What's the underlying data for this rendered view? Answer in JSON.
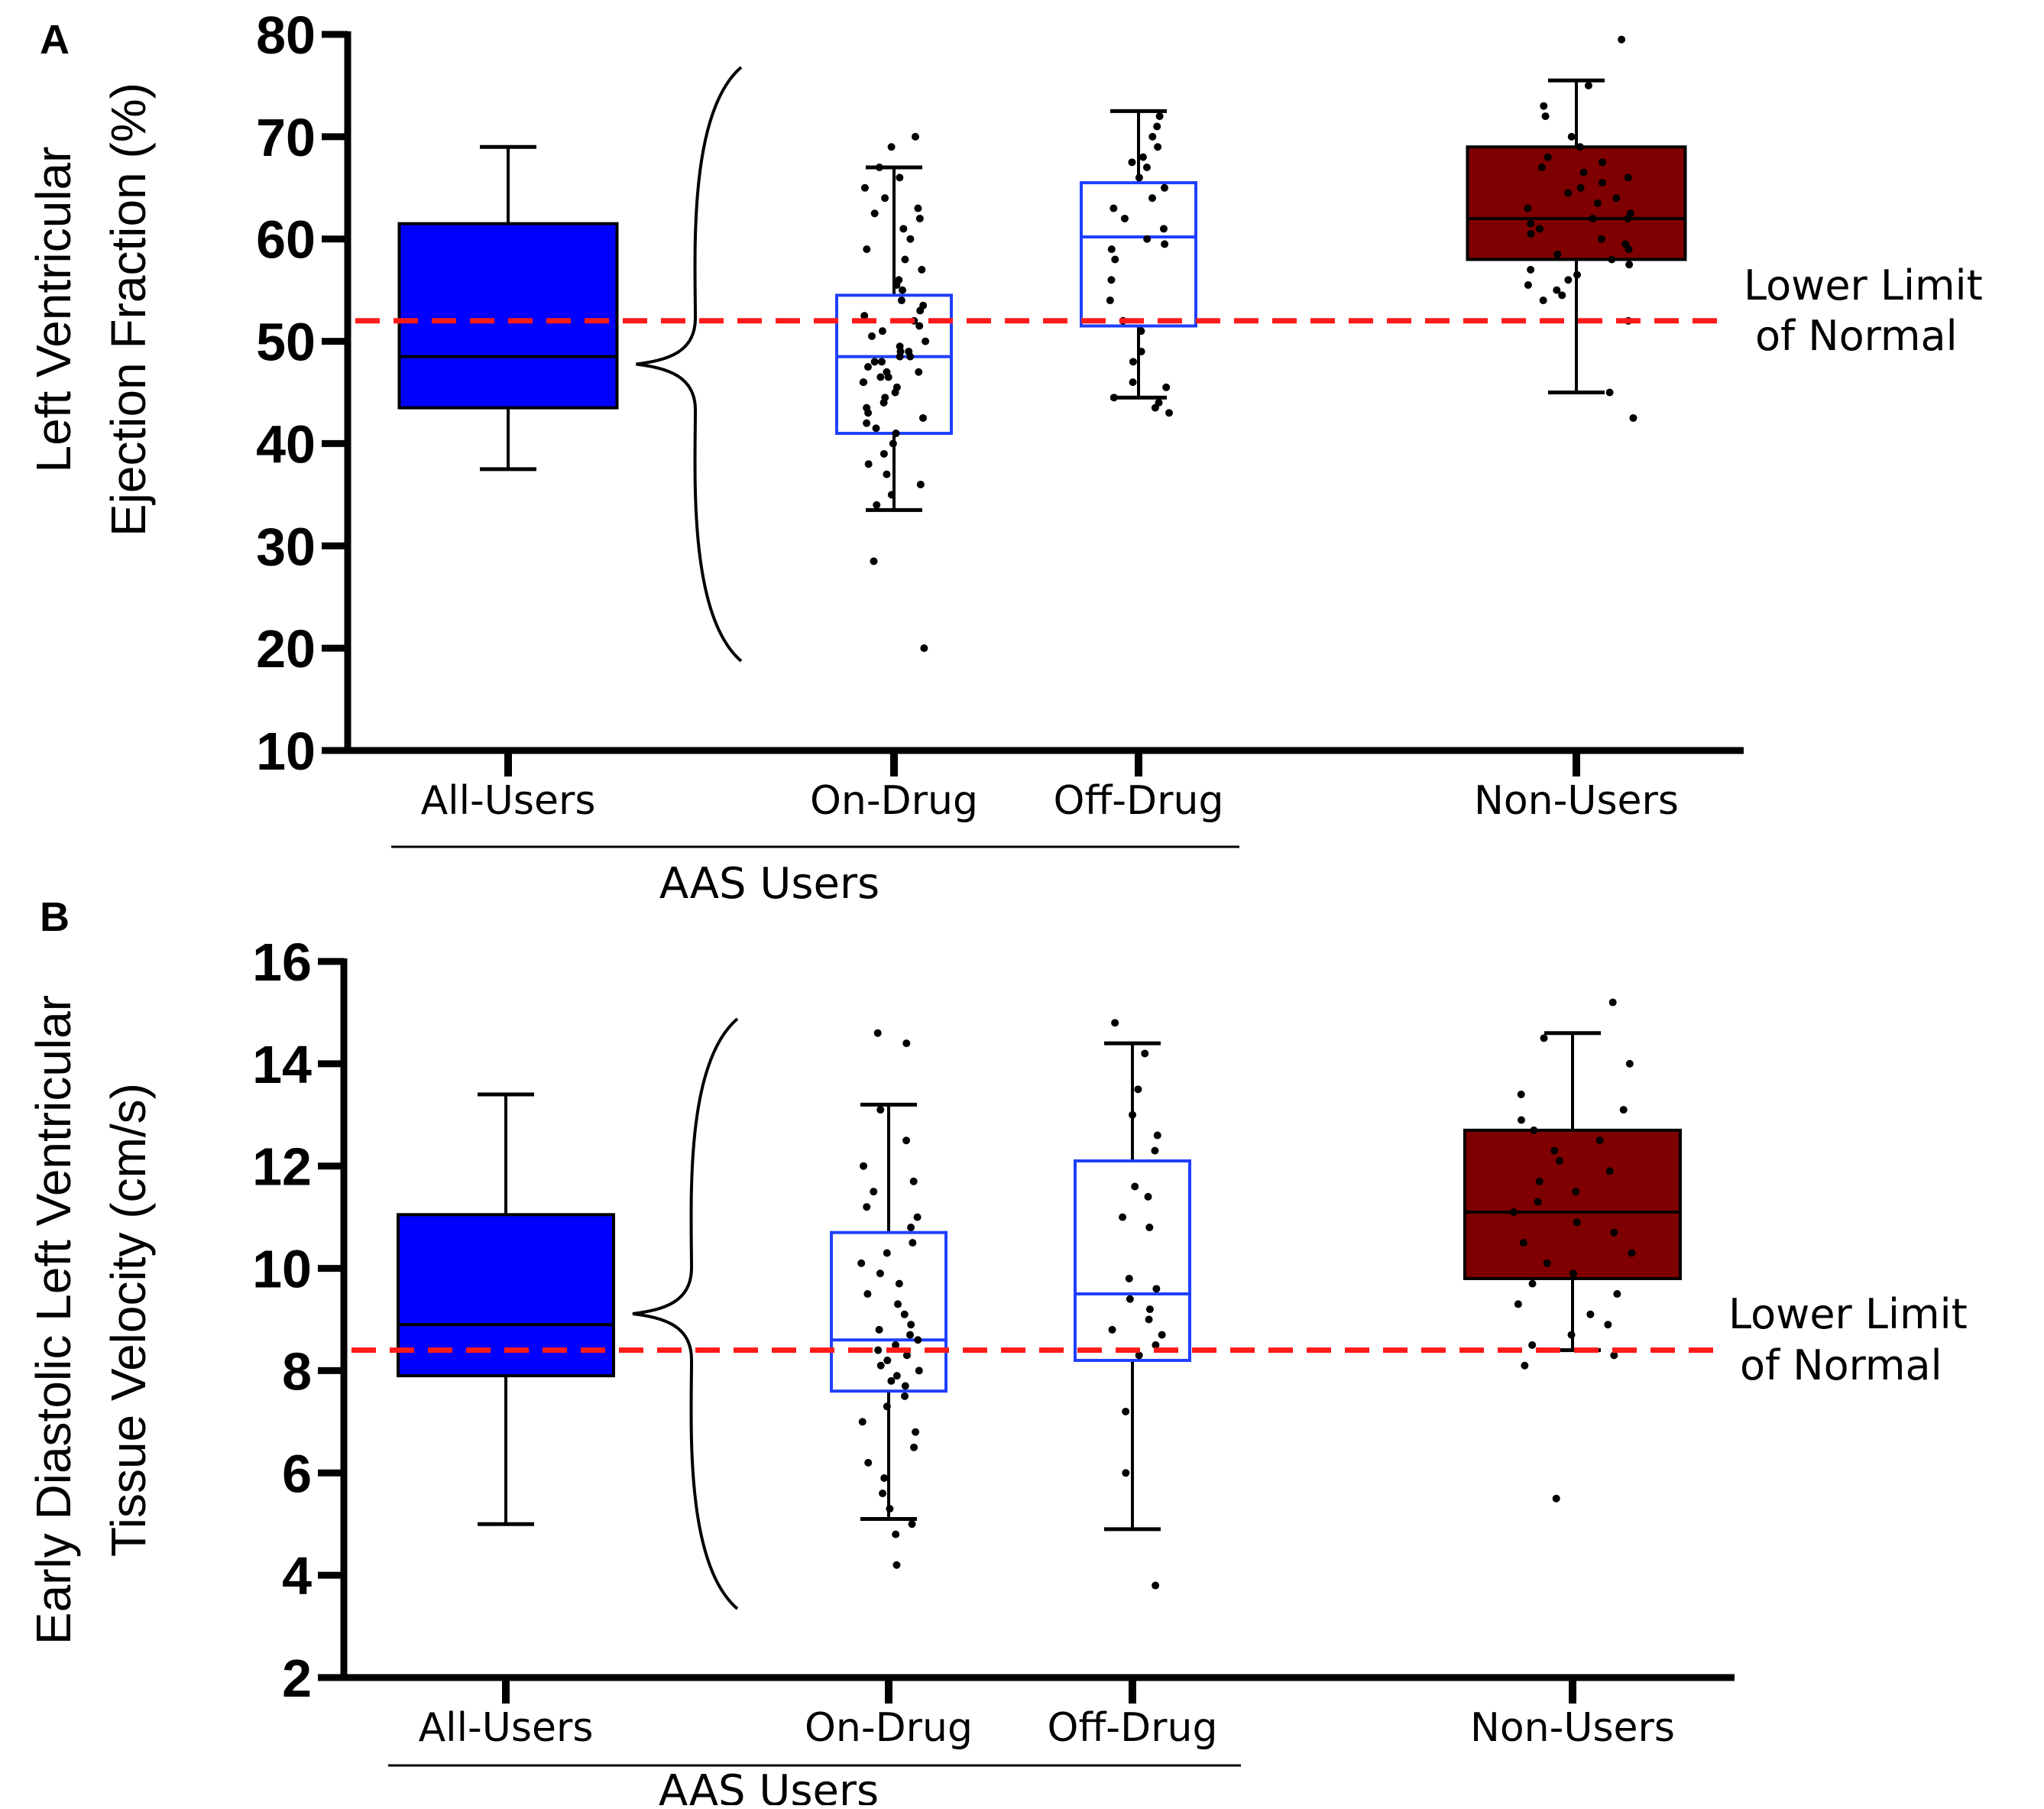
{
  "colors": {
    "filled_blue": "#0000ff",
    "outline_blue": "#1f3fff",
    "filled_red": "#7f0000",
    "reference_red": "#ff1a1a",
    "ink": "#000000"
  },
  "chart_data": [
    {
      "type": "box",
      "panel": "A",
      "ylabel_lines": [
        "Left Ventricular",
        "Ejection Fraction  (%)"
      ],
      "ylim": [
        10,
        80
      ],
      "yticks": [
        10,
        20,
        30,
        40,
        50,
        60,
        70,
        80
      ],
      "grid": false,
      "categories": [
        "All-Users",
        "On-Drug",
        "Off-Drug",
        "Non-Users"
      ],
      "group_label": "AAS Users",
      "reference_line": {
        "value": 52,
        "label_lines": [
          "Lower Limit",
          "of   Normal"
        ]
      },
      "boxes": [
        {
          "name": "All-Users",
          "min": 37.5,
          "q1": 43.5,
          "median": 48.5,
          "q3": 61.5,
          "max": 69,
          "style": "filled",
          "color": "#0000ff"
        },
        {
          "name": "On-Drug",
          "min": 33.5,
          "q1": 41,
          "median": 48.5,
          "q3": 54.5,
          "max": 67,
          "style": "outline",
          "color": "#1f3fff"
        },
        {
          "name": "Off-Drug",
          "min": 44.5,
          "q1": 51.5,
          "median": 60.2,
          "q3": 65.5,
          "max": 72.5,
          "style": "outline",
          "color": "#1f3fff"
        },
        {
          "name": "Non-Users",
          "min": 45,
          "q1": 58,
          "median": 62,
          "q3": 69,
          "max": 75.5,
          "style": "filled",
          "color": "#7f0000"
        }
      ],
      "points": {
        "On-Drug": [
          70,
          69,
          67,
          66,
          65,
          64,
          63,
          62.5,
          62,
          61,
          60,
          59,
          58,
          57,
          56,
          55.5,
          55,
          54,
          53.5,
          53,
          52.5,
          52,
          51.5,
          51,
          50.5,
          50,
          49.5,
          49,
          49,
          48.5,
          48.5,
          48,
          48,
          47.5,
          47,
          47,
          46.5,
          46.5,
          46,
          46,
          45.5,
          45,
          44.5,
          44,
          43.5,
          43,
          42.5,
          42,
          41.5,
          41,
          40,
          39,
          38,
          37,
          36,
          35,
          34,
          28.5,
          20
        ],
        "Off-Drug": [
          72,
          71,
          70,
          69,
          68,
          67.5,
          67,
          66,
          65,
          64,
          63,
          62,
          61,
          60,
          59.5,
          59,
          58,
          56,
          54,
          52,
          51,
          49,
          48,
          46,
          45.5,
          44.5,
          44,
          43.5,
          43
        ],
        "Non-Users": [
          79.5,
          75,
          73,
          72,
          70,
          69,
          68,
          67.5,
          67,
          66.5,
          66,
          65.5,
          65,
          64.5,
          64,
          63.5,
          63,
          62.5,
          62,
          62,
          61.5,
          61,
          60.5,
          60,
          59.5,
          59,
          58.5,
          58,
          57.5,
          57,
          56.5,
          56,
          55.5,
          55,
          54.5,
          54,
          52,
          45,
          42.5
        ]
      }
    },
    {
      "type": "box",
      "panel": "B",
      "ylabel_lines": [
        "Early Diastolic Left Ventricular",
        "Tissue Velocity (cm/s)"
      ],
      "ylim": [
        2,
        16
      ],
      "yticks": [
        2,
        4,
        6,
        8,
        10,
        12,
        14,
        16
      ],
      "grid": false,
      "categories": [
        "All-Users",
        "On-Drug",
        "Off-Drug",
        "Non-Users"
      ],
      "group_label": "AAS Users",
      "reference_line": {
        "value": 8.4,
        "label_lines": [
          "Lower Limit",
          "of   Normal"
        ]
      },
      "boxes": [
        {
          "name": "All-Users",
          "min": 5,
          "q1": 7.9,
          "median": 8.9,
          "q3": 11.05,
          "max": 13.4,
          "style": "filled",
          "color": "#0000ff"
        },
        {
          "name": "On-Drug",
          "min": 5.1,
          "q1": 7.6,
          "median": 8.6,
          "q3": 10.7,
          "max": 13.2,
          "style": "outline",
          "color": "#1f3fff"
        },
        {
          "name": "Off-Drug",
          "min": 4.9,
          "q1": 8.2,
          "median": 9.5,
          "q3": 12.1,
          "max": 14.4,
          "style": "outline",
          "color": "#1f3fff"
        },
        {
          "name": "Non-Users",
          "min": 8.4,
          "q1": 9.8,
          "median": 11.1,
          "q3": 12.7,
          "max": 14.6,
          "style": "filled",
          "color": "#7f0000"
        }
      ],
      "points": {
        "On-Drug": [
          14.6,
          14.4,
          13.1,
          12.5,
          12.0,
          11.7,
          11.5,
          11.2,
          11.0,
          10.8,
          10.5,
          10.3,
          10.1,
          9.9,
          9.7,
          9.5,
          9.3,
          9.1,
          8.9,
          8.8,
          8.7,
          8.6,
          8.5,
          8.4,
          8.3,
          8.2,
          8.1,
          8.0,
          7.9,
          7.8,
          7.7,
          7.5,
          7.3,
          7.0,
          6.8,
          6.5,
          6.2,
          5.9,
          5.6,
          5.3,
          5.0,
          4.8,
          4.2
        ],
        "Off-Drug": [
          14.8,
          14.2,
          13.5,
          13.0,
          12.6,
          12.3,
          11.6,
          11.4,
          11.0,
          10.8,
          9.8,
          9.6,
          9.4,
          9.2,
          9.0,
          8.8,
          8.7,
          8.5,
          8.3,
          7.2,
          6.0,
          3.8
        ],
        "Non-Users": [
          15.2,
          14.5,
          14.0,
          13.4,
          13.1,
          12.9,
          12.7,
          12.5,
          12.3,
          12.1,
          11.9,
          11.7,
          11.5,
          11.3,
          11.1,
          10.9,
          10.7,
          10.5,
          10.3,
          10.1,
          9.9,
          9.7,
          9.5,
          9.3,
          9.1,
          8.9,
          8.7,
          8.5,
          8.3,
          8.1,
          5.5
        ]
      }
    }
  ]
}
